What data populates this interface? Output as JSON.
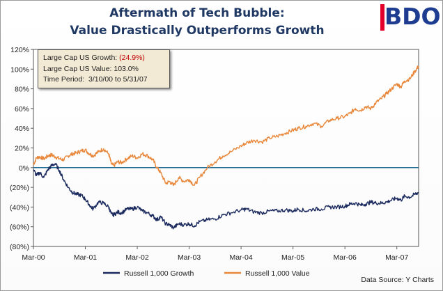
{
  "title": {
    "line1": "Aftermath of Tech Bubble:",
    "line2": "Value Drastically Outperforms Growth"
  },
  "logo": {
    "text": "BDO",
    "bar_color": "#e3002b",
    "text_color": "#1e3d91"
  },
  "info_box": {
    "growth_label": "Large Cap US Growth:",
    "growth_value": "(24.9%)",
    "value_label": "Large Cap US Value:",
    "value_value": "103.0%",
    "period_label": "Time Period:",
    "period_value": "3/10/00 to 5/31/07"
  },
  "source": "Data Source: Y Charts",
  "chart_data": {
    "type": "line",
    "title": "Aftermath of Tech Bubble: Value Drastically Outperforms Growth",
    "xlabel": "",
    "ylabel": "",
    "xlim": [
      2000.0,
      2007.42
    ],
    "ylim": [
      -80,
      120
    ],
    "y_ticks": [
      120,
      100,
      80,
      60,
      40,
      20,
      0,
      -20,
      -40,
      -60,
      -80
    ],
    "y_tick_labels": [
      "120%",
      "100%",
      "80%",
      "60%",
      "40%",
      "20%",
      "0%",
      "(20%)",
      "(40%)",
      "(60%)",
      "(80%)"
    ],
    "x_ticks": [
      2000.0,
      2001.0,
      2002.0,
      2003.0,
      2004.0,
      2005.0,
      2006.0,
      2007.0
    ],
    "x_tick_labels": [
      "Mar-00",
      "Mar-01",
      "Mar-02",
      "Mar-03",
      "Mar-04",
      "Mar-05",
      "Mar-06",
      "Mar-07"
    ],
    "reference_line": {
      "y": 0,
      "color": "#1f6b94"
    },
    "legend": {
      "placement": "bottom"
    },
    "series": [
      {
        "name": "Russell 1,000 Growth",
        "color": "#1b2a5e",
        "x": [
          2000.0,
          2000.06,
          2000.12,
          2000.2,
          2000.28,
          2000.35,
          2000.42,
          2000.5,
          2000.58,
          2000.67,
          2000.75,
          2000.83,
          2000.92,
          2001.0,
          2001.08,
          2001.15,
          2001.25,
          2001.35,
          2001.45,
          2001.5,
          2001.55,
          2001.62,
          2001.7,
          2001.8,
          2001.9,
          2002.0,
          2002.1,
          2002.2,
          2002.3,
          2002.38,
          2002.45,
          2002.55,
          2002.62,
          2002.7,
          2002.8,
          2002.9,
          2003.0,
          2003.1,
          2003.2,
          2003.35,
          2003.5,
          2003.65,
          2003.8,
          2004.0,
          2004.1,
          2004.25,
          2004.4,
          2004.55,
          2004.7,
          2004.85,
          2005.0,
          2005.1,
          2005.25,
          2005.4,
          2005.55,
          2005.7,
          2005.85,
          2006.0,
          2006.1,
          2006.2,
          2006.3,
          2006.4,
          2006.5,
          2006.6,
          2006.7,
          2006.8,
          2006.9,
          2007.0,
          2007.08,
          2007.15,
          2007.25,
          2007.35,
          2007.42
        ],
        "values": [
          -2,
          -8,
          -5,
          -10,
          -2,
          2,
          4,
          -3,
          -12,
          -20,
          -25,
          -27,
          -28,
          -32,
          -38,
          -42,
          -35,
          -36,
          -40,
          -47,
          -48,
          -45,
          -46,
          -42,
          -42,
          -40,
          -44,
          -46,
          -49,
          -53,
          -50,
          -57,
          -58,
          -61,
          -57,
          -58,
          -57,
          -59,
          -55,
          -53,
          -52,
          -48,
          -46,
          -43,
          -42,
          -45,
          -46,
          -44,
          -44,
          -43,
          -44,
          -42,
          -44,
          -42,
          -42,
          -40,
          -40,
          -39,
          -37,
          -36,
          -38,
          -37,
          -35,
          -36,
          -36,
          -35,
          -33,
          -31,
          -33,
          -29,
          -30,
          -27,
          -25
        ]
      },
      {
        "name": "Russell 1,000 Value",
        "color": "#e8873a",
        "x": [
          2000.0,
          2000.06,
          2000.12,
          2000.2,
          2000.28,
          2000.35,
          2000.42,
          2000.5,
          2000.58,
          2000.67,
          2000.75,
          2000.83,
          2000.92,
          2001.0,
          2001.08,
          2001.15,
          2001.25,
          2001.35,
          2001.45,
          2001.5,
          2001.55,
          2001.62,
          2001.7,
          2001.8,
          2001.9,
          2002.0,
          2002.1,
          2002.2,
          2002.3,
          2002.38,
          2002.45,
          2002.55,
          2002.62,
          2002.7,
          2002.8,
          2002.9,
          2003.0,
          2003.1,
          2003.2,
          2003.35,
          2003.5,
          2003.65,
          2003.8,
          2004.0,
          2004.1,
          2004.25,
          2004.4,
          2004.55,
          2004.7,
          2004.85,
          2005.0,
          2005.1,
          2005.25,
          2005.4,
          2005.55,
          2005.7,
          2005.85,
          2006.0,
          2006.1,
          2006.2,
          2006.3,
          2006.4,
          2006.5,
          2006.6,
          2006.7,
          2006.8,
          2006.9,
          2007.0,
          2007.08,
          2007.15,
          2007.25,
          2007.35,
          2007.42
        ],
        "values": [
          3,
          10,
          11,
          9,
          12,
          13,
          11,
          9,
          8,
          12,
          14,
          15,
          17,
          18,
          14,
          12,
          16,
          19,
          14,
          4,
          2,
          6,
          5,
          9,
          12,
          10,
          14,
          12,
          8,
          0,
          -5,
          -16,
          -14,
          -18,
          -10,
          -14,
          -12,
          -18,
          -10,
          0,
          6,
          12,
          16,
          22,
          25,
          28,
          26,
          30,
          32,
          35,
          38,
          40,
          42,
          45,
          42,
          48,
          50,
          52,
          55,
          60,
          58,
          62,
          60,
          66,
          70,
          75,
          80,
          85,
          82,
          88,
          90,
          98,
          103
        ]
      }
    ]
  }
}
